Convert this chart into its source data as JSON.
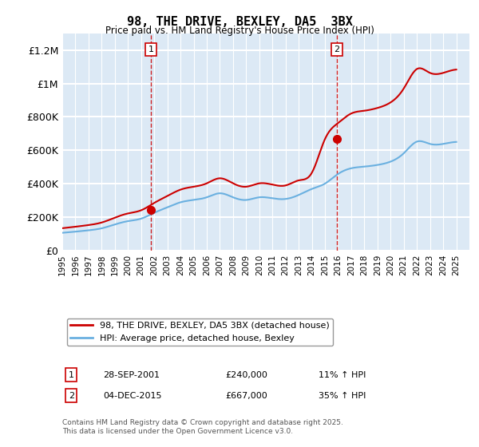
{
  "title": "98, THE DRIVE, BEXLEY, DA5  3BX",
  "subtitle": "Price paid vs. HM Land Registry's House Price Index (HPI)",
  "ylim": [
    0,
    1300000
  ],
  "yticks": [
    0,
    200000,
    400000,
    600000,
    800000,
    1000000,
    1200000
  ],
  "ytick_labels": [
    "£0",
    "£200K",
    "£400K",
    "£600K",
    "£800K",
    "£1M",
    "£1.2M"
  ],
  "xmin": 1995,
  "xmax": 2026,
  "sale1_x": 2001.75,
  "sale1_y": 240000,
  "sale2_x": 2015.92,
  "sale2_y": 667000,
  "legend_line1": "98, THE DRIVE, BEXLEY, DA5 3BX (detached house)",
  "legend_line2": "HPI: Average price, detached house, Bexley",
  "annotation1_label": "1",
  "annotation1_date": "28-SEP-2001",
  "annotation1_price": "£240,000",
  "annotation1_hpi": "11% ↑ HPI",
  "annotation2_label": "2",
  "annotation2_date": "04-DEC-2015",
  "annotation2_price": "£667,000",
  "annotation2_hpi": "35% ↑ HPI",
  "footnote": "Contains HM Land Registry data © Crown copyright and database right 2025.\nThis data is licensed under the Open Government Licence v3.0.",
  "bg_color": "#dce9f5",
  "line_color_hpi": "#6ab0e0",
  "line_color_price": "#cc0000",
  "dashed_line_color": "#cc0000",
  "grid_color": "#ffffff",
  "years_hpi": [
    1995,
    1996,
    1997,
    1998,
    1999,
    2000,
    2001,
    2002,
    2003,
    2004,
    2005,
    2006,
    2007,
    2008,
    2009,
    2010,
    2011,
    2012,
    2013,
    2014,
    2015,
    2016,
    2017,
    2018,
    2019,
    2020,
    2021,
    2022,
    2023,
    2024,
    2025
  ],
  "hpi_values": [
    105000,
    112000,
    120000,
    132000,
    155000,
    175000,
    190000,
    225000,
    258000,
    288000,
    302000,
    318000,
    342000,
    318000,
    302000,
    318000,
    312000,
    308000,
    332000,
    368000,
    400000,
    458000,
    492000,
    502000,
    512000,
    532000,
    582000,
    652000,
    638000,
    638000,
    650000
  ]
}
